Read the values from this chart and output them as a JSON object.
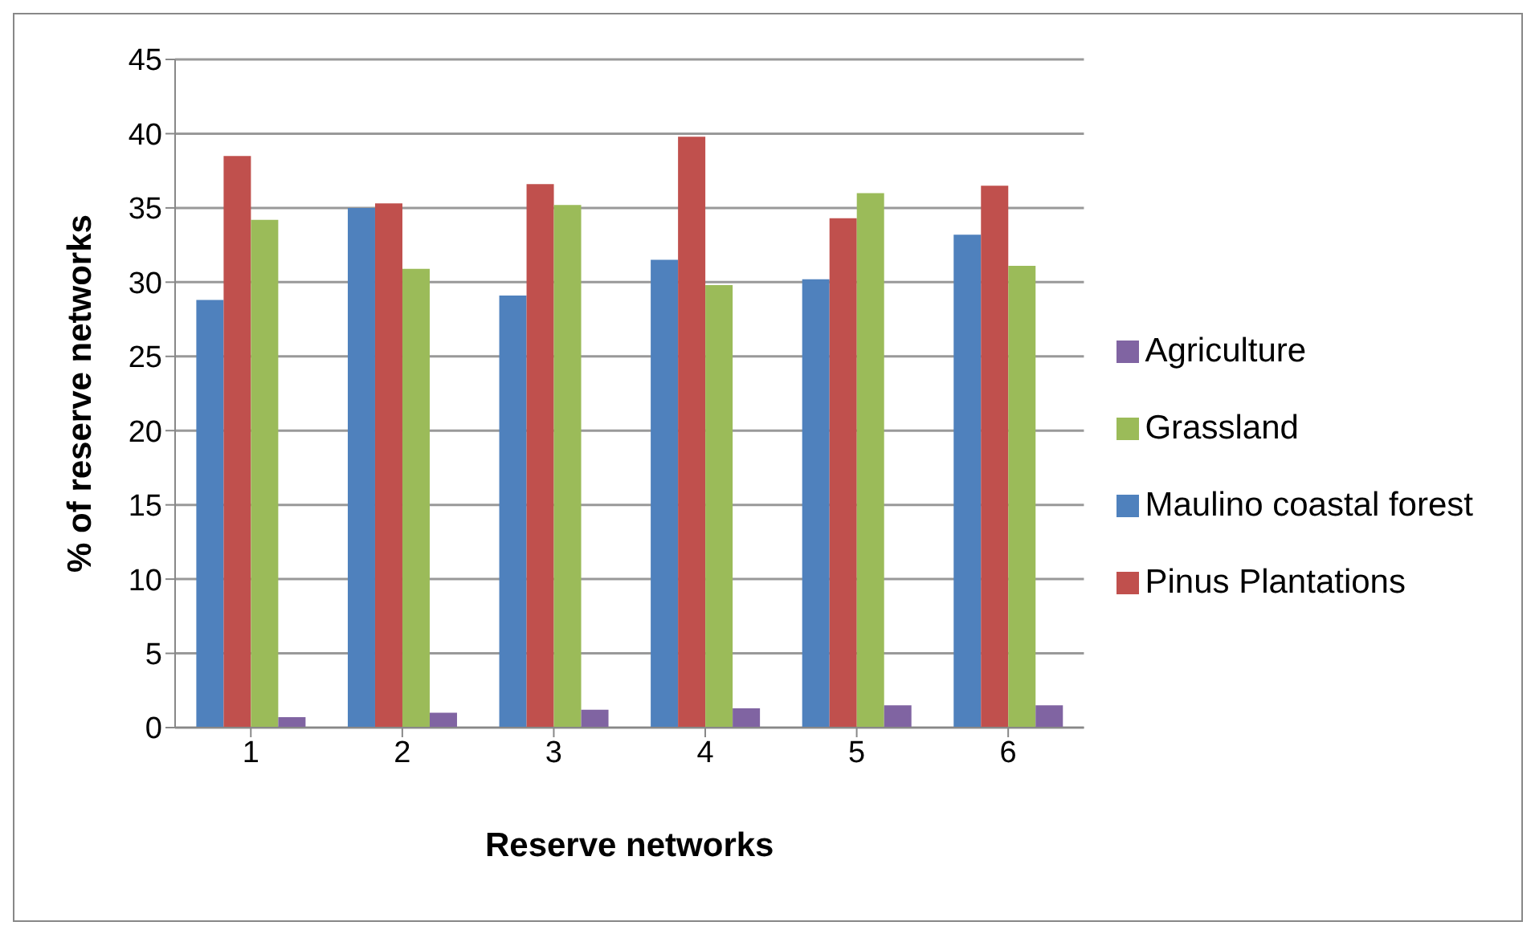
{
  "chart_data": {
    "type": "bar",
    "xlabel": "Reserve networks",
    "ylabel": "% of reserve networks",
    "categories": [
      "1",
      "2",
      "3",
      "4",
      "5",
      "6"
    ],
    "series": [
      {
        "name": "Maulino coastal forest",
        "color": "#4f81bd",
        "values": [
          28.8,
          35,
          29.1,
          31.5,
          30.2,
          33.2
        ]
      },
      {
        "name": "Pinus Plantations",
        "color": "#c0504d",
        "values": [
          38.5,
          35.3,
          36.6,
          39.8,
          34.3,
          36.5
        ]
      },
      {
        "name": "Grassland",
        "color": "#9bbb59",
        "values": [
          34.2,
          30.9,
          35.2,
          29.8,
          36,
          31.1
        ]
      },
      {
        "name": "Agriculture",
        "color": "#8064a2",
        "values": [
          0.7,
          1,
          1.2,
          1.3,
          1.5,
          1.5
        ]
      }
    ],
    "ylim": [
      0,
      45
    ],
    "yticks": [
      0,
      5,
      10,
      15,
      20,
      25,
      30,
      35,
      40,
      45
    ],
    "grid": "y",
    "legend": "right"
  }
}
